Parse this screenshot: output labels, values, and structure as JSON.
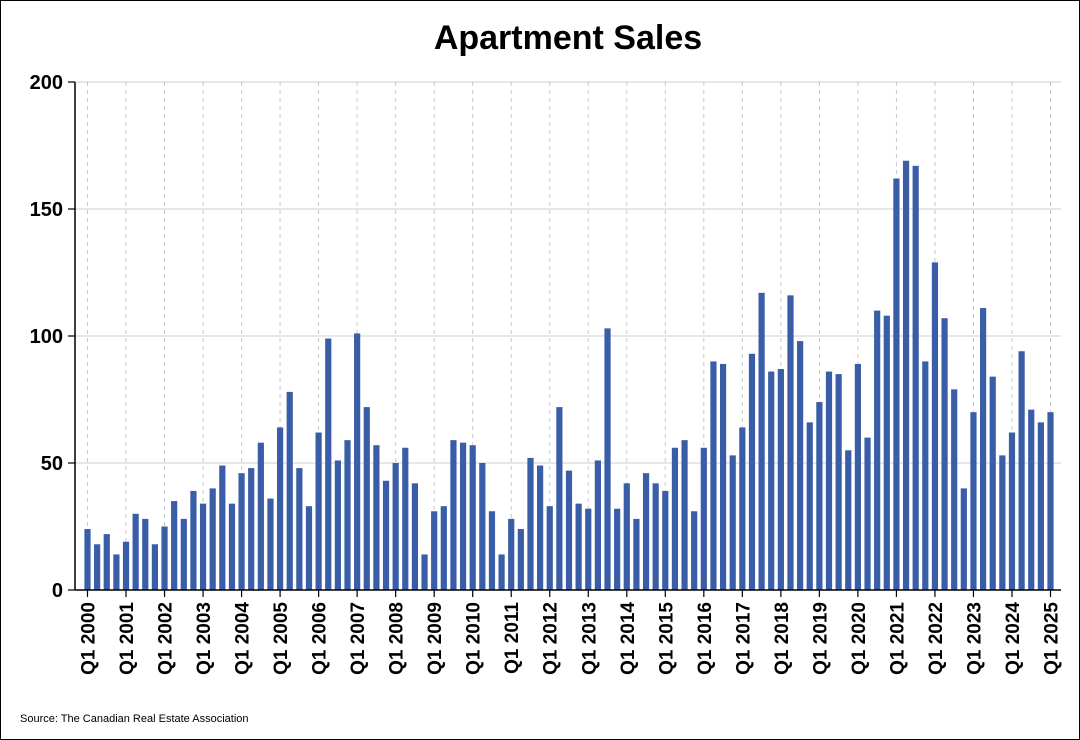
{
  "chart_data": {
    "type": "bar",
    "title": "Apartment Sales",
    "source": "Source: The Canadian Real Estate Association",
    "ylim": [
      0,
      200
    ],
    "yticks": [
      0,
      50,
      100,
      150,
      200
    ],
    "grid": {
      "horizontal": true,
      "vertical_dashed": true
    },
    "bar_color": "#3a5da8",
    "start": {
      "year": 2000,
      "quarter": 1
    },
    "x_tick_labels": [
      "Q1 2000",
      "Q1 2001",
      "Q1 2002",
      "Q1 2003",
      "Q1 2004",
      "Q1 2005",
      "Q1 2006",
      "Q1 2007",
      "Q1 2008",
      "Q1 2009",
      "Q1 2010",
      "Q1 2011",
      "Q1 2012",
      "Q1 2013",
      "Q1 2014",
      "Q1 2015",
      "Q1 2016",
      "Q1 2017",
      "Q1 2018",
      "Q1 2019",
      "Q1 2020",
      "Q1 2021",
      "Q1 2022",
      "Q1 2023",
      "Q1 2024",
      "Q1 2025"
    ],
    "values": [
      24,
      18,
      22,
      14,
      19,
      30,
      28,
      18,
      25,
      35,
      28,
      39,
      34,
      40,
      49,
      34,
      46,
      48,
      58,
      36,
      64,
      78,
      48,
      33,
      62,
      99,
      51,
      59,
      101,
      72,
      57,
      43,
      50,
      56,
      42,
      14,
      31,
      33,
      59,
      58,
      57,
      50,
      31,
      14,
      28,
      24,
      52,
      49,
      33,
      72,
      47,
      34,
      32,
      51,
      103,
      32,
      42,
      28,
      46,
      42,
      39,
      56,
      59,
      31,
      56,
      90,
      89,
      53,
      64,
      93,
      117,
      86,
      87,
      116,
      98,
      66,
      74,
      86,
      85,
      55,
      89,
      60,
      110,
      108,
      162,
      169,
      167,
      90,
      129,
      107,
      79,
      40,
      70,
      111,
      84,
      53,
      62,
      94,
      71,
      66,
      70
    ]
  }
}
